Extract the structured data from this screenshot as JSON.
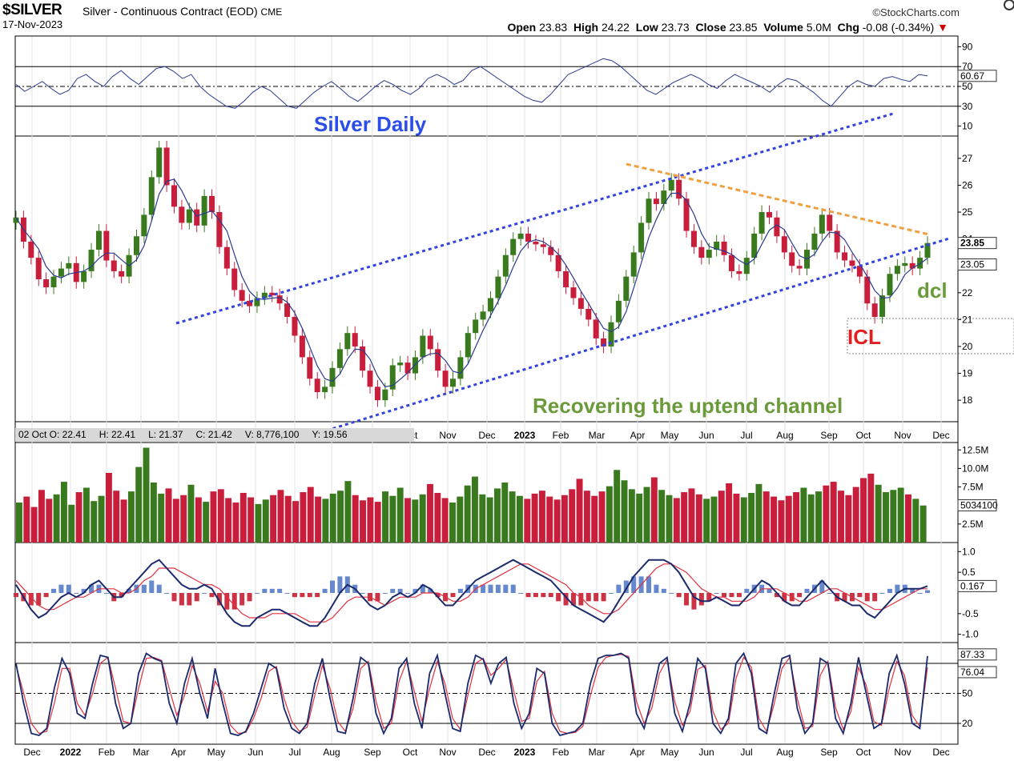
{
  "header": {
    "symbol": "$SILVER",
    "description": "Silver - Continuous Contract (EOD)",
    "exchange": "CME",
    "date": "17-Nov-2023",
    "brand": "©StockCharts.com",
    "open_label": "Open",
    "open": "23.83",
    "high_label": "High",
    "high": "24.22",
    "low_label": "Low",
    "low": "23.73",
    "close_label": "Close",
    "close": "23.85",
    "volume_label": "Volume",
    "volume": "5.0M",
    "chg_label": "Chg",
    "chg": "-0.08 (-0.34%)"
  },
  "data_window": {
    "date": "02 Oct O: 22.41",
    "high": "H: 22.41",
    "low": "L: 21.37",
    "close": "C: 21.42",
    "volume": "V: 8,776,100",
    "y": "Y: 19.56"
  },
  "annotations": {
    "title": "Silver Daily",
    "channel_note": "Recovering the uptend channel",
    "icl": "ICL",
    "dcl": "dcl"
  },
  "colors": {
    "up": "#3a7a1e",
    "down": "#c81e3c",
    "ma": "#2b3a8f",
    "channel": "#3344dd",
    "resistance": "#f0a040",
    "macd": "#1a2a6c",
    "signal": "#e03040",
    "hist_pos": "#6688cc",
    "hist_neg": "#cc3344",
    "annot_blue": "#2b4ee8",
    "annot_green": "#6a9a3a",
    "annot_red": "#e02020"
  },
  "chart_data": [
    {
      "type": "line",
      "panel": "rsi",
      "ylim": [
        0,
        100
      ],
      "ticks": [
        "90",
        "70",
        "50",
        "30",
        "10"
      ],
      "reference_lines": [
        70,
        50,
        30
      ],
      "last_value_label": "60.67",
      "values": [
        52,
        45,
        50,
        55,
        48,
        42,
        46,
        58,
        62,
        55,
        50,
        60,
        66,
        58,
        52,
        60,
        68,
        70,
        65,
        58,
        62,
        50,
        42,
        36,
        30,
        28,
        35,
        44,
        50,
        46,
        38,
        30,
        28,
        36,
        44,
        50,
        55,
        48,
        40,
        35,
        42,
        50,
        56,
        52,
        46,
        42,
        48,
        58,
        62,
        58,
        52,
        56,
        66,
        70,
        64,
        58,
        52,
        46,
        40,
        36,
        34,
        42,
        52,
        62,
        66,
        70,
        74,
        78,
        76,
        70,
        62,
        54,
        46,
        42,
        48,
        54,
        58,
        62,
        58,
        52,
        48,
        56,
        62,
        58,
        54,
        50,
        44,
        52,
        58,
        56,
        50,
        44,
        36,
        30,
        40,
        50,
        56,
        52,
        50,
        58,
        60,
        57,
        55,
        62,
        60.67
      ]
    },
    {
      "type": "candlestick",
      "panel": "price",
      "ylim": [
        17.2,
        27.8
      ],
      "ticks": [
        "27",
        "26",
        "25",
        "24",
        "22",
        "21",
        "20",
        "19",
        "18"
      ],
      "last_close_label": "23.85",
      "ma_label": "23.05",
      "x_ticks": [
        "Oct",
        "Nov",
        "Dec",
        "2023",
        "Feb",
        "Mar",
        "Apr",
        "May",
        "Jun",
        "Jul",
        "Aug",
        "Sep",
        "Oct",
        "Nov",
        "Dec"
      ],
      "closes": [
        24.8,
        23.9,
        23.3,
        22.5,
        22.2,
        22.6,
        22.9,
        23.1,
        22.4,
        22.8,
        23.6,
        24.3,
        23.2,
        22.8,
        22.6,
        23.4,
        24.1,
        24.9,
        26.3,
        27.4,
        26.0,
        25.2,
        24.6,
        25.1,
        24.5,
        25.6,
        25.0,
        23.7,
        22.9,
        22.1,
        21.7,
        21.5,
        21.8,
        22.0,
        21.9,
        21.6,
        21.1,
        20.4,
        19.6,
        18.8,
        18.3,
        18.5,
        19.2,
        19.9,
        20.5,
        20.0,
        19.1,
        18.5,
        18.0,
        18.4,
        19.3,
        19.4,
        19.0,
        19.6,
        20.4,
        19.9,
        19.1,
        18.5,
        18.8,
        19.6,
        20.5,
        21.0,
        21.3,
        21.8,
        22.6,
        23.4,
        24.0,
        24.2,
        23.9,
        23.8,
        23.7,
        23.4,
        22.8,
        22.2,
        21.8,
        21.4,
        21.0,
        20.3,
        20.0,
        20.9,
        21.7,
        22.6,
        23.5,
        24.6,
        25.5,
        25.3,
        25.8,
        26.2,
        25.5,
        24.3,
        23.7,
        23.3,
        23.6,
        23.9,
        23.4,
        22.8,
        22.7,
        23.3,
        24.2,
        25.0,
        24.8,
        24.1,
        23.5,
        23.0,
        22.9,
        23.6,
        24.2,
        24.9,
        24.3,
        23.5,
        23.2,
        23.0,
        22.6,
        21.6,
        21.1,
        21.9,
        22.7,
        23.0,
        23.1,
        22.9,
        23.3,
        23.85
      ]
    },
    {
      "type": "bar",
      "panel": "volume",
      "ticks": [
        "12.5M",
        "10.0M",
        "7.5M",
        "2.5M"
      ],
      "last_value_label": "5034100",
      "values": [
        5.4,
        6.2,
        4.8,
        7.1,
        5.9,
        6.5,
        8.2,
        5.1,
        6.8,
        7.4,
        5.6,
        6.3,
        9.4,
        7.0,
        5.8,
        6.9,
        10.2,
        12.8,
        8.1,
        6.6,
        7.3,
        5.9,
        6.4,
        7.8,
        6.1,
        5.5,
        6.9,
        7.2,
        6.0,
        5.4,
        6.7,
        6.1,
        5.2,
        5.8,
        6.4,
        7.1,
        6.3,
        5.6,
        6.8,
        7.5,
        6.2,
        5.9,
        6.6,
        7.0,
        8.3,
        6.4,
        5.7,
        6.1,
        5.5,
        6.9,
        6.3,
        7.4,
        6.0,
        5.8,
        6.5,
        7.9,
        6.7,
        6.0,
        5.4,
        6.2,
        7.7,
        8.9,
        6.5,
        6.1,
        7.3,
        8.1,
        6.9,
        6.3,
        5.9,
        6.6,
        7.0,
        6.2,
        5.8,
        6.4,
        7.2,
        8.6,
        7.0,
        6.3,
        6.9,
        7.6,
        9.8,
        8.4,
        7.2,
        6.6,
        7.5,
        8.8,
        7.1,
        6.4,
        6.0,
        6.8,
        7.3,
        6.5,
        5.9,
        6.2,
        7.0,
        8.0,
        6.6,
        6.1,
        6.7,
        7.9,
        6.9,
        6.2,
        5.7,
        6.3,
        6.8,
        7.4,
        6.5,
        6.9,
        7.7,
        8.2,
        7.0,
        6.4,
        7.5,
        8.7,
        9.3,
        7.8,
        6.8,
        7.1,
        7.4,
        6.5,
        5.9,
        5.0
      ]
    },
    {
      "type": "line",
      "panel": "macd",
      "ticks": [
        "1.0",
        "0.5",
        "-0.5",
        "-1.0"
      ],
      "last_value_label": "0.167",
      "macd": [
        0.2,
        -0.1,
        -0.4,
        -0.6,
        -0.5,
        -0.3,
        -0.1,
        0.0,
        -0.1,
        0.0,
        0.2,
        0.3,
        0.1,
        -0.1,
        -0.1,
        0.1,
        0.3,
        0.5,
        0.7,
        0.8,
        0.6,
        0.4,
        0.2,
        0.1,
        0.1,
        0.2,
        0.1,
        -0.2,
        -0.5,
        -0.7,
        -0.8,
        -0.8,
        -0.6,
        -0.5,
        -0.4,
        -0.4,
        -0.5,
        -0.6,
        -0.7,
        -0.8,
        -0.8,
        -0.6,
        -0.3,
        0.0,
        0.2,
        0.1,
        -0.1,
        -0.3,
        -0.4,
        -0.3,
        -0.1,
        0.0,
        -0.1,
        0.0,
        0.2,
        0.1,
        -0.1,
        -0.3,
        -0.3,
        -0.1,
        0.1,
        0.3,
        0.4,
        0.5,
        0.6,
        0.7,
        0.8,
        0.7,
        0.6,
        0.5,
        0.4,
        0.3,
        0.1,
        -0.1,
        -0.3,
        -0.4,
        -0.5,
        -0.6,
        -0.7,
        -0.5,
        -0.2,
        0.1,
        0.4,
        0.6,
        0.8,
        0.8,
        0.8,
        0.7,
        0.5,
        0.2,
        -0.1,
        -0.2,
        -0.2,
        -0.1,
        -0.2,
        -0.3,
        -0.3,
        -0.1,
        0.1,
        0.3,
        0.2,
        0.0,
        -0.2,
        -0.3,
        -0.3,
        -0.1,
        0.1,
        0.3,
        0.1,
        -0.1,
        -0.2,
        -0.3,
        -0.3,
        -0.5,
        -0.6,
        -0.4,
        -0.2,
        0.0,
        0.1,
        0.1,
        0.1,
        0.167
      ],
      "signal": [
        0.3,
        0.1,
        -0.1,
        -0.3,
        -0.4,
        -0.4,
        -0.3,
        -0.2,
        -0.1,
        -0.1,
        0.0,
        0.1,
        0.1,
        0.1,
        0.0,
        0.0,
        0.1,
        0.3,
        0.4,
        0.6,
        0.6,
        0.6,
        0.5,
        0.4,
        0.3,
        0.2,
        0.2,
        0.1,
        -0.1,
        -0.3,
        -0.5,
        -0.6,
        -0.6,
        -0.6,
        -0.5,
        -0.5,
        -0.5,
        -0.5,
        -0.6,
        -0.7,
        -0.7,
        -0.7,
        -0.6,
        -0.4,
        -0.2,
        -0.1,
        -0.1,
        -0.1,
        -0.2,
        -0.3,
        -0.2,
        -0.1,
        -0.1,
        -0.1,
        0.0,
        0.0,
        0.0,
        -0.1,
        -0.2,
        -0.2,
        -0.1,
        0.1,
        0.2,
        0.3,
        0.4,
        0.5,
        0.6,
        0.7,
        0.7,
        0.6,
        0.5,
        0.4,
        0.3,
        0.2,
        0.0,
        -0.1,
        -0.3,
        -0.4,
        -0.5,
        -0.5,
        -0.4,
        -0.2,
        0.0,
        0.2,
        0.4,
        0.6,
        0.7,
        0.7,
        0.6,
        0.5,
        0.3,
        0.1,
        0.0,
        -0.1,
        -0.1,
        -0.2,
        -0.2,
        -0.2,
        -0.1,
        0.1,
        0.1,
        0.1,
        0.0,
        -0.1,
        -0.2,
        -0.2,
        -0.1,
        0.0,
        0.1,
        0.1,
        0.0,
        -0.1,
        -0.2,
        -0.3,
        -0.4,
        -0.4,
        -0.3,
        -0.2,
        -0.1,
        0.0,
        0.1,
        0.1
      ]
    },
    {
      "type": "line",
      "panel": "stochastic",
      "ylim": [
        0,
        100
      ],
      "ticks": [
        "50",
        "20"
      ],
      "reference_lines": [
        80,
        50,
        20
      ],
      "last_value_labels": [
        "87.33",
        "76.04"
      ],
      "k": [
        80,
        40,
        10,
        8,
        15,
        55,
        85,
        70,
        30,
        25,
        60,
        88,
        86,
        40,
        15,
        20,
        70,
        90,
        85,
        82,
        40,
        20,
        60,
        85,
        50,
        25,
        75,
        40,
        10,
        8,
        12,
        30,
        55,
        80,
        75,
        35,
        15,
        10,
        20,
        60,
        85,
        45,
        12,
        10,
        45,
        86,
        80,
        30,
        10,
        25,
        75,
        85,
        40,
        15,
        70,
        88,
        50,
        15,
        12,
        60,
        88,
        84,
        60,
        80,
        86,
        40,
        15,
        30,
        75,
        70,
        20,
        8,
        10,
        12,
        20,
        60,
        85,
        88,
        88,
        90,
        85,
        30,
        15,
        45,
        80,
        86,
        30,
        12,
        40,
        85,
        75,
        20,
        10,
        25,
        80,
        90,
        70,
        15,
        10,
        50,
        85,
        88,
        35,
        10,
        20,
        85,
        80,
        25,
        10,
        40,
        86,
        50,
        15,
        20,
        70,
        88,
        60,
        20,
        15,
        87.33
      ],
      "d": [
        78,
        50,
        20,
        10,
        12,
        40,
        75,
        75,
        40,
        28,
        50,
        80,
        86,
        55,
        22,
        20,
        55,
        85,
        86,
        83,
        55,
        28,
        48,
        78,
        60,
        32,
        62,
        50,
        18,
        10,
        11,
        25,
        45,
        72,
        77,
        45,
        22,
        12,
        16,
        48,
        78,
        55,
        22,
        12,
        35,
        75,
        82,
        42,
        15,
        20,
        62,
        82,
        52,
        22,
        55,
        82,
        60,
        25,
        14,
        48,
        80,
        85,
        68,
        75,
        84,
        52,
        22,
        25,
        62,
        72,
        30,
        12,
        10,
        11,
        17,
        48,
        76,
        86,
        88,
        89,
        87,
        42,
        20,
        35,
        70,
        84,
        42,
        18,
        32,
        74,
        78,
        32,
        14,
        20,
        65,
        86,
        76,
        25,
        12,
        40,
        75,
        86,
        45,
        15,
        17,
        68,
        82,
        36,
        14,
        32,
        76,
        58,
        22,
        18,
        55,
        82,
        68,
        28,
        17,
        76.04
      ]
    }
  ],
  "x_axis_bottom": [
    "Dec",
    "2022",
    "Feb",
    "Mar",
    "Apr",
    "May",
    "Jun",
    "Jul",
    "Aug",
    "Sep",
    "Oct",
    "Nov",
    "Dec",
    "2023",
    "Feb",
    "Mar",
    "Apr",
    "May",
    "Jun",
    "Jul",
    "Aug",
    "Sep",
    "Oct",
    "Nov",
    "Dec"
  ]
}
